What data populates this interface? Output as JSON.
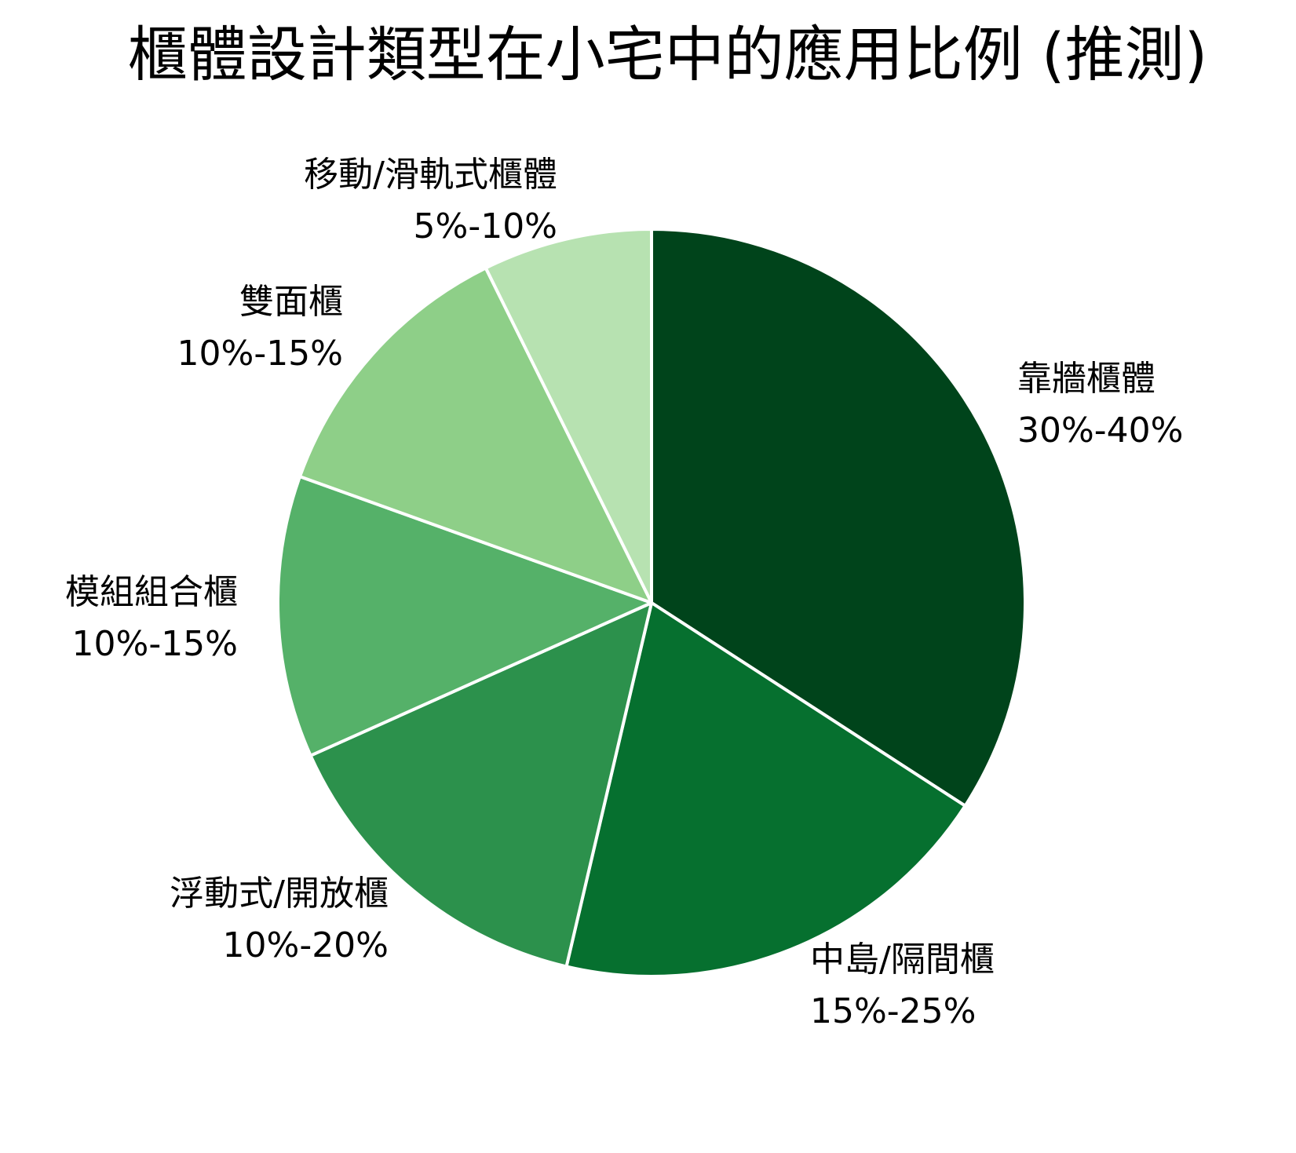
{
  "title": "櫃體設計類型在小宅中的應用比例 (推測)",
  "chart_data": {
    "type": "pie",
    "title": "櫃體設計類型在小宅中的應用比例 (推測)",
    "start_angle": "12 o'clock, clockwise",
    "slices": [
      {
        "label": "靠牆櫃體",
        "range": "30%-40%",
        "value": 35,
        "color": "#00441b"
      },
      {
        "label": "中島/隔間櫃",
        "range": "15%-25%",
        "value": 20,
        "color": "#06702f"
      },
      {
        "label": "浮動式/開放櫃",
        "range": "10%-20%",
        "value": 15,
        "color": "#2c914c"
      },
      {
        "label": "模組組合櫃",
        "range": "10%-15%",
        "value": 12.5,
        "color": "#55b169"
      },
      {
        "label": "雙面櫃",
        "range": "10%-15%",
        "value": 12.5,
        "color": "#8ecf88"
      },
      {
        "label": "移動/滑軌式櫃體",
        "range": "5%-10%",
        "value": 7.5,
        "color": "#b7e2b1"
      }
    ],
    "legend": "none (direct labels)",
    "center": [
      830,
      768
    ],
    "radius": 476
  }
}
